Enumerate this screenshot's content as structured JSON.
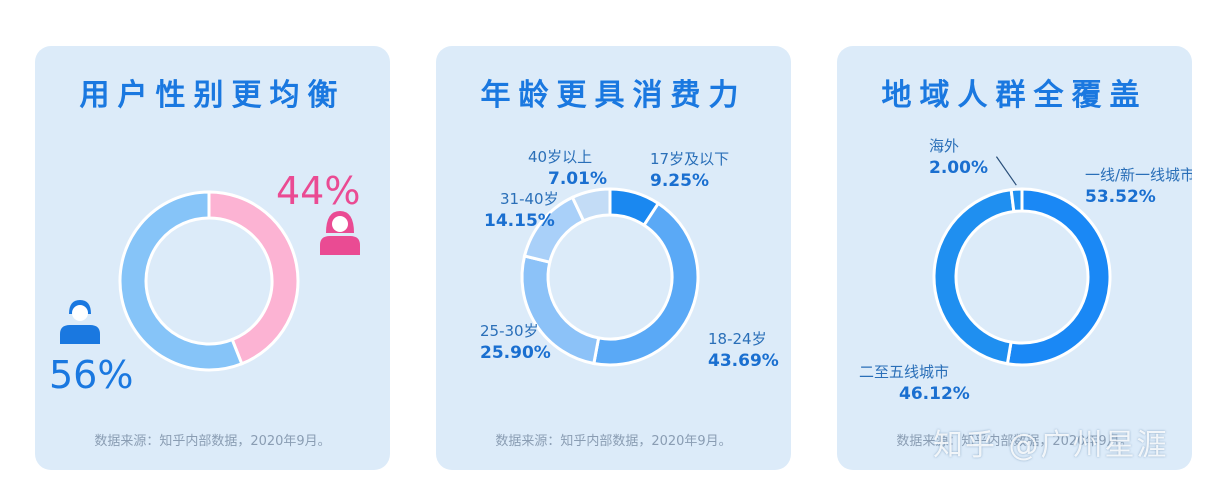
{
  "watermark": "知乎 @广州星涯",
  "chart_data": [
    {
      "type": "pie",
      "title": "用户性别更均衡",
      "source": "数据来源：知乎内部数据，2020年9月。",
      "slices": [
        {
          "label": "女",
          "value": 44,
          "display": "44%",
          "color": "#fcb3d3",
          "icon": "female-user-icon"
        },
        {
          "label": "男",
          "value": 56,
          "display": "56%",
          "color": "#86c4f8",
          "icon": "male-user-icon"
        }
      ]
    },
    {
      "type": "pie",
      "title": "年龄更具消费力",
      "source": "数据来源：知乎内部数据，2020年9月。",
      "slices": [
        {
          "label": "17岁及以下",
          "value": 9.25,
          "display": "9.25%",
          "color": "#1a88f0"
        },
        {
          "label": "18-24岁",
          "value": 43.69,
          "display": "43.69%",
          "color": "#5aa9f6"
        },
        {
          "label": "25-30岁",
          "value": 25.9,
          "display": "25.90%",
          "color": "#8cc2f8"
        },
        {
          "label": "31-40岁",
          "value": 14.15,
          "display": "14.15%",
          "color": "#a9d0f9"
        },
        {
          "label": "40岁以上",
          "value": 7.01,
          "display": "7.01%",
          "color": "#c3dcf6"
        }
      ]
    },
    {
      "type": "pie",
      "title": "地域人群全覆盖",
      "source": "数据来源：知乎内部数据，2020年9月。",
      "slices": [
        {
          "label": "一线/新一线城市",
          "value": 53.52,
          "display": "53.52%",
          "color": "#1a88f5"
        },
        {
          "label": "二至五线城市",
          "value": 46.12,
          "display": "46.12%",
          "color": "#1f8ff0"
        },
        {
          "label": "海外",
          "value": 2.0,
          "display": "2.00%",
          "color": "#1f8ff0"
        }
      ]
    }
  ]
}
